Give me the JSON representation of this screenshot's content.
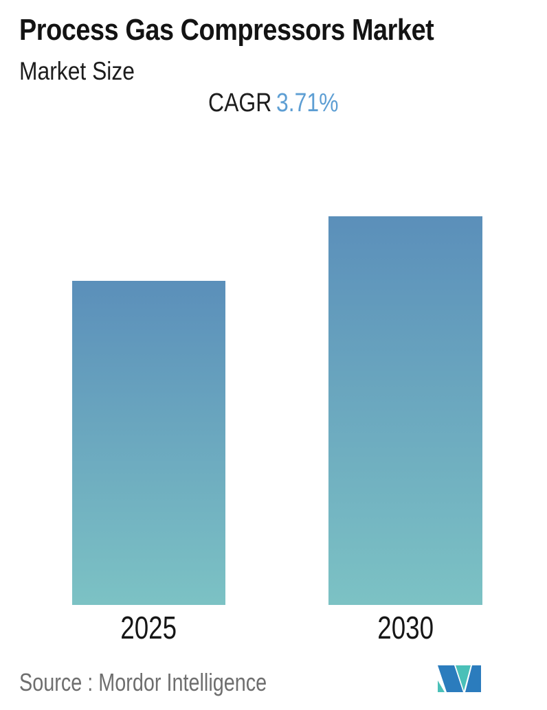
{
  "header": {
    "title": "Process Gas Compressors Market",
    "subtitle": "Market Size",
    "cagr_label": "CAGR",
    "cagr_value": "3.71%"
  },
  "chart_data": {
    "type": "bar",
    "title": "Process Gas Compressors Market",
    "subtitle": "Market Size",
    "categories": [
      "2025",
      "2030"
    ],
    "values": [
      1.0,
      1.2
    ],
    "values_note": "relative market size; no y-axis or value labels shown, 2030 bar is ~1.2x the 2025 bar (1.0371^5)",
    "annotation": "CAGR 3.71%",
    "xlabel": "",
    "ylabel": "",
    "axes_shown": false,
    "grid": false,
    "legend": false,
    "bar_gradient_top": "#5b8fba",
    "bar_gradient_bottom": "#7cc2c4"
  },
  "footer": {
    "source_label": "Source :",
    "source_value": "Mordor Intelligence"
  },
  "colors": {
    "title_text": "#131313",
    "cagr_value_blue": "#5d9ed3",
    "source_gray": "#6e6e6e",
    "logo_blue": "#2b7cbd",
    "logo_teal": "#4ac0b8"
  }
}
